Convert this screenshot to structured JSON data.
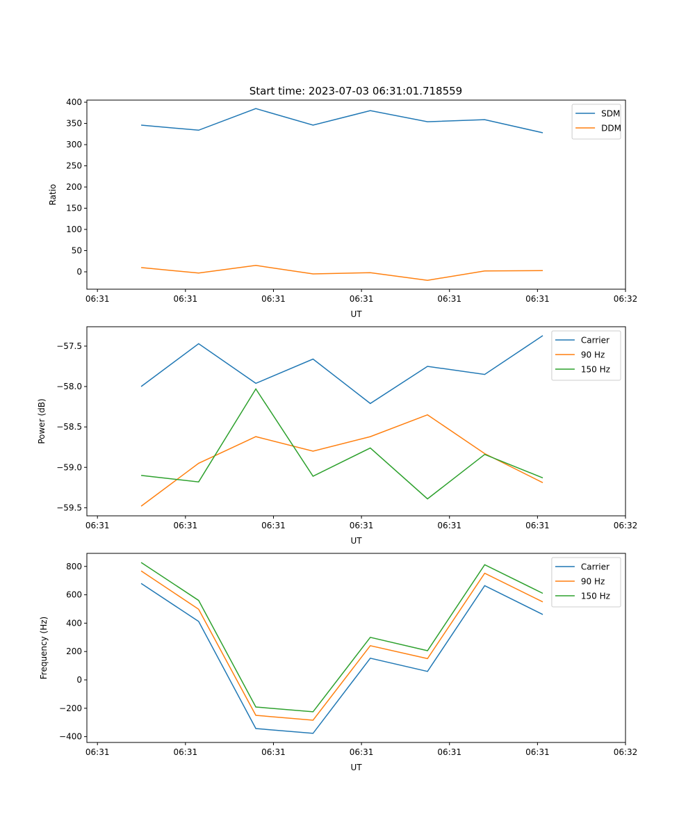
{
  "figure_title": "Start time: 2023-07-03 06:31:01.718559",
  "colors": {
    "blue": "#1f77b4",
    "orange": "#ff7f0e",
    "green": "#2ca02c"
  },
  "chart_data": [
    {
      "type": "line",
      "title": "Start time: 2023-07-03 06:31:01.718559",
      "xlabel": "UT",
      "ylabel": "Ratio",
      "x_unit": "seconds after 06:31:00",
      "x": [
        4.97,
        11.5,
        18.0,
        24.5,
        31.0,
        37.5,
        44.0,
        50.6
      ],
      "xlim": [
        -1.2,
        60
      ],
      "xticks": [
        0,
        10,
        20,
        30,
        40,
        50,
        60
      ],
      "xtick_labels": [
        "06:31",
        "06:31",
        "06:31",
        "06:31",
        "06:31",
        "06:31",
        "06:32"
      ],
      "ylim": [
        -41,
        405
      ],
      "yticks": [
        0,
        50,
        100,
        150,
        200,
        250,
        300,
        350,
        400
      ],
      "ytick_labels": [
        "0",
        "50",
        "100",
        "150",
        "200",
        "250",
        "300",
        "350",
        "400"
      ],
      "legend_placement": "upper-right",
      "series": [
        {
          "name": "SDM",
          "color": "#1f77b4",
          "values": [
            346,
            334,
            385,
            346,
            380,
            354,
            359,
            328
          ]
        },
        {
          "name": "DDM",
          "color": "#ff7f0e",
          "values": [
            10,
            -3,
            15,
            -5,
            -2,
            -20,
            2,
            3
          ]
        }
      ]
    },
    {
      "type": "line",
      "title": "",
      "xlabel": "UT",
      "ylabel": "Power (dB)",
      "x": [
        4.97,
        11.5,
        18.0,
        24.5,
        31.0,
        37.5,
        44.0,
        50.6
      ],
      "xlim": [
        -1.2,
        60
      ],
      "xticks": [
        0,
        10,
        20,
        30,
        40,
        50,
        60
      ],
      "xtick_labels": [
        "06:31",
        "06:31",
        "06:31",
        "06:31",
        "06:31",
        "06:31",
        "06:32"
      ],
      "ylim": [
        -59.6,
        -57.26
      ],
      "yticks": [
        -59.5,
        -59.0,
        -58.5,
        -58.0,
        -57.5
      ],
      "ytick_labels": [
        "−59.5",
        "−59.0",
        "−58.5",
        "−58.0",
        "−57.5"
      ],
      "legend_placement": "upper-right",
      "series": [
        {
          "name": "Carrier",
          "color": "#1f77b4",
          "values": [
            -58.0,
            -57.47,
            -57.96,
            -57.66,
            -58.21,
            -57.75,
            -57.85,
            -57.37
          ]
        },
        {
          "name": "90 Hz",
          "color": "#ff7f0e",
          "values": [
            -59.48,
            -58.95,
            -58.62,
            -58.8,
            -58.62,
            -58.35,
            -58.83,
            -59.19
          ]
        },
        {
          "name": "150 Hz",
          "color": "#2ca02c",
          "values": [
            -59.1,
            -59.18,
            -58.03,
            -59.11,
            -58.76,
            -59.39,
            -58.84,
            -59.13
          ]
        }
      ]
    },
    {
      "type": "line",
      "title": "",
      "xlabel": "UT",
      "ylabel": "Frequency (Hz)",
      "x": [
        4.97,
        11.5,
        18.0,
        24.5,
        31.0,
        37.5,
        44.0,
        50.6
      ],
      "xlim": [
        -1.2,
        60
      ],
      "xticks": [
        0,
        10,
        20,
        30,
        40,
        50,
        60
      ],
      "xtick_labels": [
        "06:31",
        "06:31",
        "06:31",
        "06:31",
        "06:31",
        "06:31",
        "06:32"
      ],
      "ylim": [
        -441,
        892
      ],
      "yticks": [
        -400,
        -200,
        0,
        200,
        400,
        600,
        800
      ],
      "ytick_labels": [
        "−400",
        "−200",
        "0",
        "200",
        "400",
        "600",
        "800"
      ],
      "legend_placement": "upper-right",
      "series": [
        {
          "name": "Carrier",
          "color": "#1f77b4",
          "values": [
            680,
            412,
            -343,
            -377,
            153,
            60,
            664,
            461
          ]
        },
        {
          "name": "90 Hz",
          "color": "#ff7f0e",
          "values": [
            768,
            498,
            -250,
            -284,
            241,
            150,
            752,
            550
          ]
        },
        {
          "name": "150 Hz",
          "color": "#2ca02c",
          "values": [
            828,
            560,
            -191,
            -225,
            300,
            206,
            812,
            610
          ]
        }
      ]
    }
  ]
}
